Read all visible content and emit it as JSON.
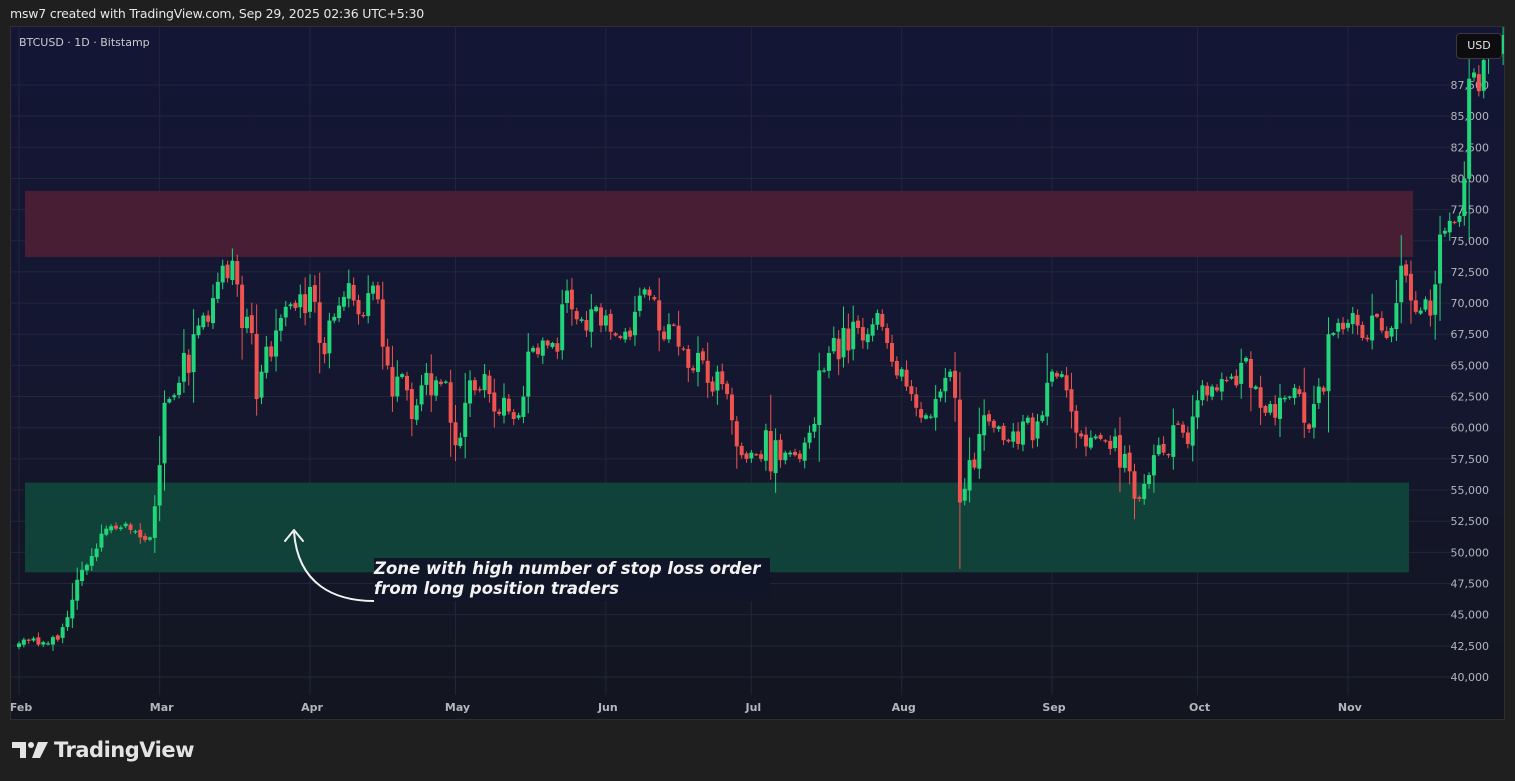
{
  "caption": "msw7 created with TradingView.com, Sep 29, 2025 02:36 UTC+5:30",
  "chart": {
    "symbol_label": "BTCUSD · 1D · Bitstamp",
    "currency_button": "USD",
    "annotation": {
      "line1": "Zone with high number of stop loss order",
      "line2": "from long position traders",
      "arrow_icon": "curved-arrow-up"
    },
    "colors": {
      "up": "#22d47a",
      "down": "#ef5350",
      "resistance_zone": "#4a1f35",
      "support_zone": "#10443a",
      "grid": "#23263a",
      "axis_text": "#b2b5be"
    }
  },
  "footer": {
    "brand": "TradingView"
  },
  "chart_data": {
    "type": "candlestick",
    "title": "BTCUSD · 1D · Bitstamp",
    "xlabel": "",
    "ylabel": "USD",
    "ylim": [
      38500,
      91500
    ],
    "y_ticks": [
      40000,
      42500,
      45000,
      47500,
      50000,
      52500,
      55000,
      57500,
      60000,
      62500,
      65000,
      67500,
      70000,
      72500,
      75000,
      77500,
      80000,
      82500,
      85000,
      87500
    ],
    "x_ticks": [
      {
        "label": "Feb",
        "day": 0
      },
      {
        "label": "Mar",
        "day": 29
      },
      {
        "label": "Apr",
        "day": 60
      },
      {
        "label": "May",
        "day": 90
      },
      {
        "label": "Jun",
        "day": 121
      },
      {
        "label": "Jul",
        "day": 151
      },
      {
        "label": "Aug",
        "day": 182
      },
      {
        "label": "Sep",
        "day": 213
      },
      {
        "label": "Oct",
        "day": 243
      },
      {
        "label": "Nov",
        "day": 274
      }
    ],
    "grid": true,
    "zones": [
      {
        "name": "resistance-zone",
        "from": 73700,
        "to": 79000,
        "start_day": 2,
        "end_day": 287
      },
      {
        "name": "support-zone",
        "from": 48400,
        "to": 55600,
        "start_day": 2,
        "end_day": 286
      }
    ],
    "closes": [
      42700,
      43000,
      42900,
      43100,
      42600,
      42800,
      42700,
      43200,
      43000,
      44000,
      44800,
      46200,
      47800,
      48600,
      49000,
      49700,
      50300,
      51500,
      51900,
      52100,
      51900,
      52000,
      52300,
      51800,
      51700,
      51200,
      51000,
      51200,
      53700,
      57000,
      62000,
      62300,
      62600,
      63600,
      66000,
      64400,
      67500,
      68200,
      69000,
      68500,
      70400,
      71700,
      73000,
      72000,
      73400,
      71500,
      68000,
      68900,
      67600,
      62300,
      64500,
      66500,
      65700,
      67800,
      68800,
      69700,
      69900,
      69600,
      70700,
      69200,
      71300,
      70100,
      66800,
      65900,
      68600,
      68900,
      69800,
      70500,
      71600,
      70200,
      69100,
      69000,
      70800,
      71400,
      70300,
      66500,
      65000,
      62500,
      64100,
      64300,
      63000,
      60700,
      61800,
      63400,
      64400,
      62600,
      63800,
      63500,
      63700,
      60400,
      58600,
      59200,
      62000,
      63800,
      63000,
      63000,
      64300,
      62700,
      61300,
      61100,
      62400,
      61300,
      60700,
      61000,
      62500,
      66100,
      66400,
      65900,
      67000,
      66600,
      66800,
      66100,
      69900,
      71000,
      69500,
      68700,
      68700,
      67800,
      69500,
      69700,
      68200,
      69000,
      67700,
      67400,
      67200,
      67700,
      67300,
      69300,
      70600,
      71100,
      70600,
      70300,
      67800,
      67100,
      68300,
      68200,
      66500,
      66300,
      64800,
      64600,
      66000,
      65400,
      63600,
      62900,
      64500,
      63500,
      62700,
      60600,
      58500,
      57800,
      57500,
      58000,
      57800,
      57500,
      59800,
      56500,
      59000,
      57400,
      58000,
      58000,
      57800,
      57500,
      58800,
      59600,
      60300,
      64600,
      64600,
      66000,
      67200,
      65500,
      68000,
      66200,
      68500,
      68000,
      67000,
      67500,
      68300,
      69200,
      68100,
      66800,
      65300,
      64200,
      64700,
      63300,
      62700,
      61600,
      60800,
      61000,
      60900,
      62300,
      62900,
      64000,
      64500,
      62400,
      54000,
      55100,
      57400,
      56800,
      59500,
      61000,
      60500,
      60000,
      60100,
      59000,
      58900,
      59700,
      58700,
      60500,
      60800,
      59000,
      60500,
      61000,
      63600,
      64500,
      64100,
      64300,
      63000,
      61300,
      59600,
      59300,
      58500,
      59200,
      59300,
      59100,
      58900,
      58300,
      59300,
      56800,
      57900,
      56500,
      54300,
      54300,
      55500,
      56200,
      57800,
      58600,
      58000,
      57800,
      60200,
      60300,
      59600,
      58700,
      60900,
      62200,
      63400,
      62600,
      63300,
      63000,
      63900,
      63800,
      64100,
      63400,
      65200,
      65600,
      63200,
      63300,
      61600,
      61200,
      61900,
      60800,
      62400,
      62400,
      62500,
      63200,
      62700,
      60400,
      59900,
      61900,
      63300,
      62900,
      67500,
      67600,
      68400,
      67900,
      68400,
      69200,
      68200,
      67200,
      67100,
      69000,
      68900,
      67800,
      67200,
      68000,
      70000,
      73000,
      72200,
      70200,
      69300,
      69400,
      70300,
      69000,
      71500,
      75500,
      75800,
      76600,
      76500,
      77000,
      80000,
      88000,
      88500,
      87000,
      89500,
      91000,
      90500,
      89900,
      91500,
      92000
    ]
  }
}
